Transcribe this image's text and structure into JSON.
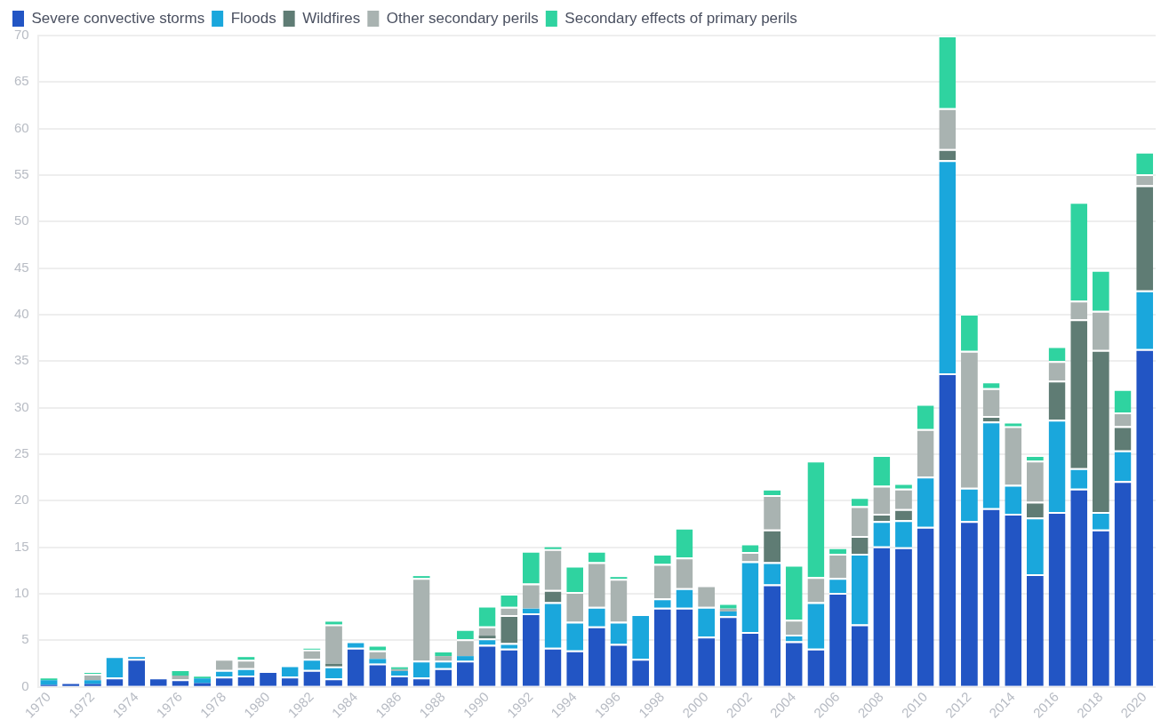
{
  "chart_data": {
    "type": "bar",
    "stacked": true,
    "legend": "top left",
    "grid": "y",
    "categories": [
      "1970",
      null,
      "1972",
      null,
      "1974",
      null,
      "1976",
      null,
      "1978",
      null,
      "1980",
      null,
      "1982",
      null,
      "1984",
      null,
      "1986",
      null,
      "1988",
      null,
      "1990",
      null,
      "1992",
      null,
      "1994",
      null,
      "1996",
      null,
      "1998",
      null,
      "2000",
      null,
      "2002",
      null,
      "2004",
      null,
      "2006",
      null,
      "2008",
      null,
      "2010",
      null,
      "2012",
      null,
      "2014",
      null,
      "2016",
      null,
      "2018",
      null,
      "2020"
    ],
    "ylim": [
      0,
      70
    ],
    "yticks": [
      0,
      5,
      10,
      15,
      20,
      25,
      30,
      35,
      40,
      45,
      50,
      55,
      60,
      65,
      70
    ],
    "series": [
      {
        "name": "Severe convective storms",
        "color": "#2255c4",
        "values": [
          0.2,
          0.3,
          0.3,
          1.0,
          3.0,
          1.0,
          0.8,
          0.4,
          1.1,
          1.2,
          1.7,
          1.1,
          1.8,
          0.9,
          4.2,
          2.5,
          1.2,
          1.0,
          2.0,
          2.8,
          4.5,
          4.1,
          7.9,
          4.2,
          3.9,
          6.5,
          4.6,
          3.0,
          8.5,
          8.5,
          5.4,
          7.6,
          5.9,
          11.0,
          4.9,
          4.1,
          10.1,
          6.7,
          15.1,
          15.0,
          17.2,
          33.7,
          17.8,
          19.2,
          18.6,
          12.1,
          18.8,
          21.3,
          16.9,
          22.1,
          36.3
        ]
      },
      {
        "name": "Floods",
        "color": "#1aa7dc",
        "values": [
          0.5,
          0,
          0.4,
          2.3,
          0.2,
          0,
          0,
          0.5,
          0.7,
          0.8,
          0,
          1.2,
          1.2,
          1.3,
          0.7,
          0.5,
          0.5,
          1.8,
          0.8,
          0.5,
          0.7,
          0.6,
          0.5,
          4.9,
          3.1,
          2.1,
          2.4,
          4.8,
          1.0,
          2.1,
          3.2,
          0.5,
          7.6,
          2.4,
          0.7,
          5.0,
          1.6,
          7.6,
          2.7,
          2.9,
          5.4,
          22.9,
          3.6,
          9.3,
          3.1,
          6.1,
          9.9,
          2.2,
          1.9,
          3.3,
          6.3
        ]
      },
      {
        "name": "Wildfires",
        "color": "#5f7c74",
        "values": [
          0,
          0,
          0,
          0,
          0,
          0,
          0,
          0,
          0,
          0,
          0,
          0,
          0,
          0.3,
          0,
          0,
          0,
          0,
          0,
          0,
          0.3,
          3.0,
          0,
          1.3,
          0,
          0,
          0,
          0,
          0,
          0,
          0,
          0,
          0,
          3.5,
          0,
          0,
          0,
          1.9,
          0.8,
          1.2,
          0,
          1.2,
          0,
          0.6,
          0,
          1.7,
          4.2,
          16.0,
          17.4,
          2.6,
          11.3
        ]
      },
      {
        "name": "Other secondary perils",
        "color": "#a9b3b1",
        "values": [
          null,
          0,
          0.7,
          0,
          0,
          0,
          0.4,
          0,
          1.2,
          0.9,
          0,
          0,
          1.0,
          4.2,
          0,
          0.9,
          0.2,
          8.9,
          0.5,
          1.8,
          1.0,
          0.9,
          2.7,
          4.4,
          3.2,
          4.8,
          4.6,
          0,
          3.7,
          3.3,
          2.3,
          0.3,
          1.0,
          3.7,
          1.6,
          2.7,
          2.6,
          3.2,
          3.0,
          2.2,
          5.1,
          4.4,
          14.7,
          3.0,
          6.3,
          4.4,
          2.1,
          2.0,
          4.2,
          1.5,
          1.2
        ]
      },
      {
        "name": "Secondary effects of primary perils",
        "color": "#2fd3a0",
        "values": [
          0.2,
          0,
          0.1,
          0,
          0,
          0,
          0.5,
          0.2,
          0,
          0.3,
          0,
          0,
          0.1,
          0.3,
          0,
          0.6,
          0.2,
          0.2,
          0.4,
          1.1,
          2.2,
          1.4,
          3.5,
          0.2,
          2.8,
          1.2,
          0.2,
          0,
          1.1,
          3.2,
          0,
          0.6,
          0.9,
          0.5,
          5.9,
          12.5,
          0.5,
          1.0,
          3.3,
          0.6,
          2.7,
          7.8,
          4.0,
          0.7,
          0.3,
          0.6,
          1.6,
          10.6,
          4.4,
          2.5,
          2.4
        ]
      }
    ]
  }
}
